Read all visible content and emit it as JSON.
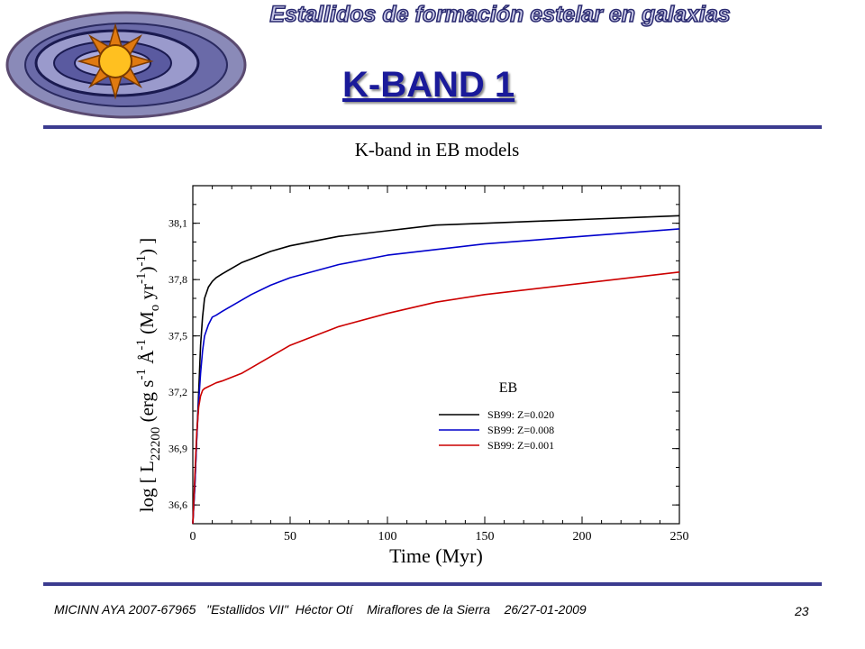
{
  "header": {
    "banner_text": "Estallidos de formación estelar en galaxias",
    "slide_title": "K-BAND 1"
  },
  "footer": {
    "text": "MICINN AYA 2007-67965   \"Estallidos VII\"  Héctor Otí    Miraflores de la Sierra    26/27-01-2009",
    "page_number": "23"
  },
  "colors": {
    "accent": "#1a1a9a",
    "rule": "#3b3b8f",
    "series_z020": "#000000",
    "series_z008": "#0000cc",
    "series_z001": "#cc0000"
  },
  "chart_data": {
    "type": "line",
    "title": "K-band in EB models",
    "xlabel": "Time (Myr)",
    "ylabel": "log [ L22200 (erg s-1 Å-1 (Mo yr-1)-1) ]",
    "xlim": [
      0,
      250
    ],
    "ylim": [
      36.5,
      38.3
    ],
    "xticks": [
      "0",
      "50",
      "100",
      "150",
      "200",
      "250"
    ],
    "yticks": [
      "36,6",
      "36,9",
      "37,2",
      "37,5",
      "37,8",
      "38,1"
    ],
    "legend_title": "EB",
    "legend_position": "right",
    "grid": false,
    "series": [
      {
        "name": "SB99: Z=0.020",
        "color": "#000000",
        "x": [
          0,
          1,
          2,
          3,
          4,
          5,
          6,
          8,
          10,
          12,
          15,
          20,
          25,
          30,
          40,
          50,
          75,
          100,
          125,
          150,
          175,
          200,
          225,
          250
        ],
        "y": [
          36.5,
          36.7,
          36.95,
          37.2,
          37.45,
          37.6,
          37.7,
          37.76,
          37.79,
          37.81,
          37.83,
          37.86,
          37.89,
          37.91,
          37.95,
          37.98,
          38.03,
          38.06,
          38.09,
          38.1,
          38.11,
          38.12,
          38.13,
          38.14
        ]
      },
      {
        "name": "SB99: Z=0.008",
        "color": "#0000cc",
        "x": [
          0,
          1,
          2,
          3,
          4,
          5,
          6,
          8,
          10,
          12,
          15,
          20,
          25,
          30,
          40,
          50,
          75,
          100,
          125,
          150,
          175,
          200,
          225,
          250
        ],
        "y": [
          36.5,
          36.7,
          36.95,
          37.15,
          37.3,
          37.42,
          37.5,
          37.56,
          37.6,
          37.61,
          37.63,
          37.66,
          37.69,
          37.72,
          37.77,
          37.81,
          37.88,
          37.93,
          37.96,
          37.99,
          38.01,
          38.03,
          38.05,
          38.07
        ]
      },
      {
        "name": "SB99: Z=0.001",
        "color": "#cc0000",
        "x": [
          0,
          1,
          2,
          3,
          4,
          5,
          6,
          8,
          10,
          12,
          15,
          20,
          25,
          30,
          40,
          50,
          75,
          100,
          125,
          150,
          175,
          200,
          225,
          250
        ],
        "y": [
          36.5,
          36.75,
          36.98,
          37.12,
          37.18,
          37.21,
          37.22,
          37.23,
          37.24,
          37.25,
          37.26,
          37.28,
          37.3,
          37.33,
          37.39,
          37.45,
          37.55,
          37.62,
          37.68,
          37.72,
          37.75,
          37.78,
          37.81,
          37.84
        ]
      }
    ]
  }
}
